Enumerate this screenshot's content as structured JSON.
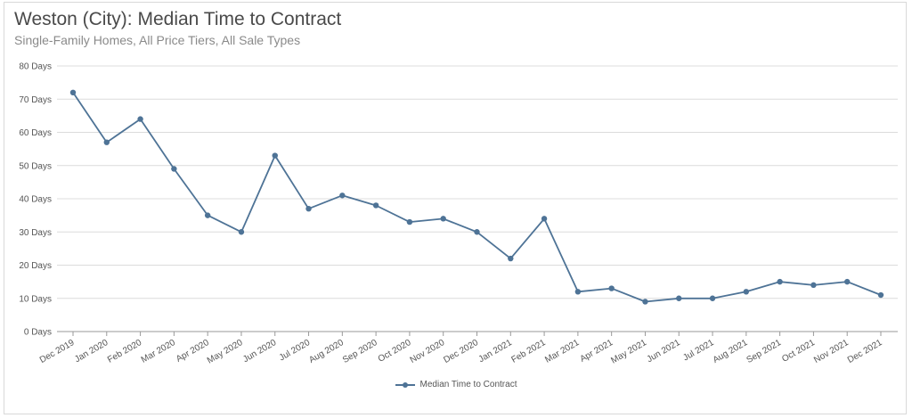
{
  "header": {
    "title": "Weston (City): Median Time to Contract",
    "subtitle": "Single-Family Homes, All Price Tiers, All Sale Types"
  },
  "colors": {
    "series": "#4e7396",
    "grid": "#dcdcdc",
    "axis": "#999999"
  },
  "chart_data": {
    "type": "line",
    "title": "Weston (City): Median Time to Contract",
    "subtitle": "Single-Family Homes, All Price Tiers, All Sale Types",
    "categories": [
      "Dec 2019",
      "Jan 2020",
      "Feb 2020",
      "Mar 2020",
      "Apr 2020",
      "May 2020",
      "Jun 2020",
      "Jul 2020",
      "Aug 2020",
      "Sep 2020",
      "Oct 2020",
      "Nov 2020",
      "Dec 2020",
      "Jan 2021",
      "Feb 2021",
      "Mar 2021",
      "Apr 2021",
      "May 2021",
      "Jun 2021",
      "Jul 2021",
      "Aug 2021",
      "Sep 2021",
      "Oct 2021",
      "Nov 2021",
      "Dec 2021"
    ],
    "series": [
      {
        "name": "Median Time to Contract",
        "values": [
          72,
          57,
          64,
          49,
          35,
          30,
          53,
          37,
          41,
          38,
          33,
          34,
          30,
          22,
          34,
          12,
          13,
          9,
          10,
          10,
          12,
          15,
          14,
          15,
          11
        ]
      }
    ],
    "yticks": [
      "0 Days",
      "10 Days",
      "20 Days",
      "30 Days",
      "40 Days",
      "50 Days",
      "60 Days",
      "70 Days",
      "80 Days"
    ],
    "ylim": [
      0,
      80
    ],
    "grid": true,
    "legend": "bottom-center"
  }
}
